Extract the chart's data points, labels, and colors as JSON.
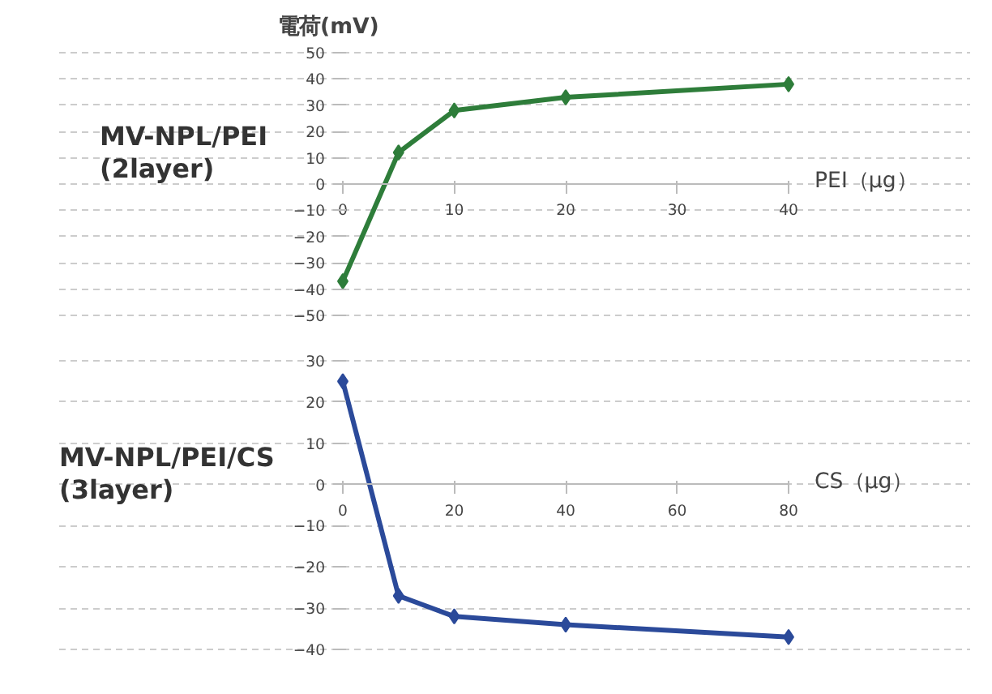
{
  "chart_data": [
    {
      "type": "line",
      "title": "MV-NPL/PEI",
      "subtitle": "(2layer)",
      "ylabel": "電荷(mV)",
      "xlabel": "PEI（μg）",
      "x": [
        0,
        5,
        10,
        20,
        40
      ],
      "series": [
        {
          "color": "#2e7d3a",
          "values": [
            -37,
            12,
            28,
            33,
            38
          ]
        }
      ],
      "xlim": [
        0,
        40
      ],
      "xticks": [
        0,
        10,
        20,
        30,
        40
      ],
      "ylim": [
        -50,
        50
      ],
      "yticks": [
        -50,
        -40,
        -30,
        -20,
        -10,
        0,
        10,
        20,
        30,
        40,
        50
      ],
      "grid": "y",
      "marker": "diamond"
    },
    {
      "type": "line",
      "title": "MV-NPL/PEI/CS",
      "subtitle": "(3layer)",
      "xlabel": "CS（μg）",
      "x": [
        0,
        10,
        20,
        40,
        80
      ],
      "series": [
        {
          "color": "#2b4a9a",
          "values": [
            25,
            -27,
            -32,
            -34,
            -37
          ]
        }
      ],
      "xlim": [
        0,
        80
      ],
      "xticks": [
        0,
        20,
        40,
        60,
        80
      ],
      "ylim": [
        -40,
        30
      ],
      "yticks": [
        -40,
        -30,
        -20,
        -10,
        0,
        10,
        20,
        30
      ],
      "grid": "y",
      "marker": "diamond"
    }
  ]
}
